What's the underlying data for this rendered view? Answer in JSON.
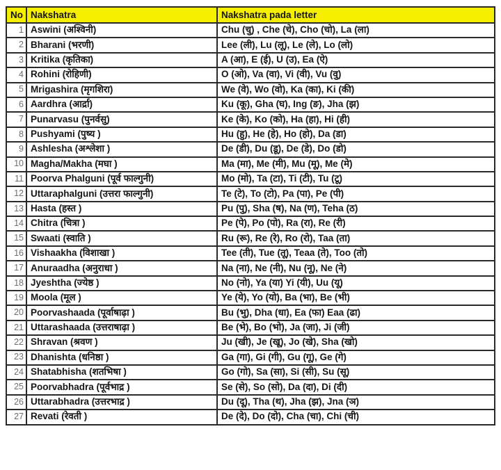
{
  "colors": {
    "header_bg": "#f7ef00",
    "border": "#2a2a2a",
    "text": "#161616",
    "number_text": "#6f6f6f"
  },
  "table": {
    "headers": {
      "no": "No",
      "nakshatra": "Nakshatra",
      "pada": "Nakshatra pada letter"
    },
    "rows": [
      {
        "no": "1",
        "name": "Aswini (अश्विनी)",
        "pada": "Chu (चु) , Che (चे), Cho (चो), La (ला)"
      },
      {
        "no": "2",
        "name": "Bharani (भरणी)",
        "pada": "Lee (ली), Lu (लू), Le (ले), Lo (लो)"
      },
      {
        "no": "3",
        "name": "Kritika (कृतिका)",
        "pada": "A (आ), E (ई), U (उ), Ea (ऐ)"
      },
      {
        "no": "4",
        "name": "Rohini (रोहिणी)",
        "pada": "O (ओ), Va (वा), Vi (वी), Vu (वु)"
      },
      {
        "no": "5",
        "name": "Mrigashira (मृगशिरा)",
        "pada": "We (वे), Wo (वो), Ka (का), Ki (की)"
      },
      {
        "no": "6",
        "name": "Aardhra (आर्द्रा)",
        "pada": "Ku (कू), Gha (घ), Ing (ङ), Jha (झ)"
      },
      {
        "no": "7",
        "name": "Punarvasu (पुनर्वसु)",
        "pada": "Ke (के), Ko (को), Ha (हा), Hi (ही)"
      },
      {
        "no": "8",
        "name": "Pushyami (पुष्य )",
        "pada": "Hu (हु), He (हे), Ho (हो), Da (डा)"
      },
      {
        "no": "9",
        "name": "Ashlesha (अश्लेशा )",
        "pada": "De (डी), Du (डू), De (डे), Do (डो)"
      },
      {
        "no": "10",
        "name": "Magha/Makha (मघा )",
        "pada": "Ma (मा), Me (मी), Mu (मू), Me (मे)"
      },
      {
        "no": "11",
        "name": "Poorva  Phalguni (पूर्व  फाल्गुनी)",
        "pada": "Mo (मो), Ta (टा), Ti (टी), Tu (टू)"
      },
      {
        "no": "12",
        "name": "Uttaraphalguni (उत्तरा  फाल्गुनी)",
        "pada": "Te (टे), To (टो), Pa (पा), Pe (पी)"
      },
      {
        "no": "13",
        "name": "Hasta (हस्त )",
        "pada": "Pu (पु), Sha (ष), Na (ण), Teha (ठ)"
      },
      {
        "no": "14",
        "name": "Chitra (चित्रा )",
        "pada": "Pe (पे), Po (पो), Ra (रा), Re (री)"
      },
      {
        "no": "15",
        "name": "Swaati (स्वाति )",
        "pada": "Ru (रू), Re (रे), Ro (रो), Taa (ता)"
      },
      {
        "no": "16",
        "name": "Vishaakha (विशाखा )",
        "pada": "Tee (ती), Tue (तू), Teaa (ते), Too (तो)"
      },
      {
        "no": "17",
        "name": "Anuraadha (अनुराधा )",
        "pada": "Na (ना), Ne (नी), Nu (नू), Ne (ने)"
      },
      {
        "no": "18",
        "name": "Jyeshtha (ज्येष्ठ )",
        "pada": "No (नो), Ya (या) Yi (यी), Uu (यू)"
      },
      {
        "no": "19",
        "name": "Moola (मूल )",
        "pada": "Ye (ये), Yo (यो), Ba (भा), Be (भी)"
      },
      {
        "no": "20",
        "name": "Poorvashaada (पूर्वाषाढ़ा )",
        "pada": "Bu (भु), Dha (धा), Ea (फा) Eaa (ढा)"
      },
      {
        "no": "21",
        "name": "Uttarashaada (उत्तराषाढ़ा )",
        "pada": "Be (भे), Bo (भो), Ja (जा), Ji (जी)"
      },
      {
        "no": "22",
        "name": "Shravan (श्रवण )",
        "pada": "Ju (खी), Je (खू), Jo (खे), Sha (खो)"
      },
      {
        "no": "23",
        "name": "Dhanishta (धनिष्ठा )",
        "pada": "Ga (गा), Gi (गी), Gu (गू), Ge (गे)"
      },
      {
        "no": "24",
        "name": "Shatabhisha (शतभिषा )",
        "pada": "Go (गो), Sa (सा), Si (सी), Su (सू)"
      },
      {
        "no": "25",
        "name": "Poorvabhadra (पूर्वभाद्र )",
        "pada": "Se (से), So (सो), Da (दा), Di (दी)"
      },
      {
        "no": "26",
        "name": "Uttarabhadra (उत्तरभाद्र )",
        "pada": "Du (दू), Tha (थ), Jha (झ), Jna (ञ)"
      },
      {
        "no": "27",
        "name": "Revati (रेवती )",
        "pada": "De (दे), Do (दो), Cha (चा), Chi (ची)"
      }
    ]
  }
}
